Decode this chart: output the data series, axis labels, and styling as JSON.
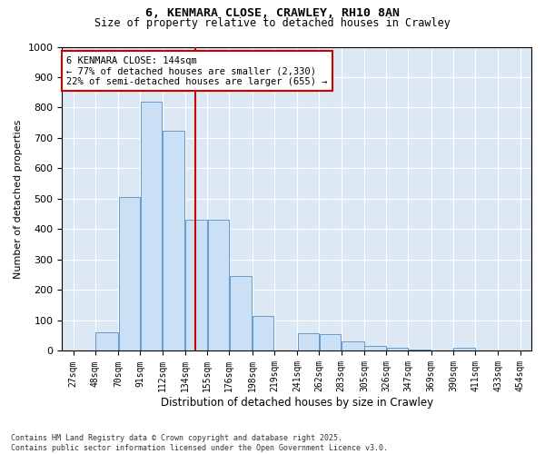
{
  "title_line1": "6, KENMARA CLOSE, CRAWLEY, RH10 8AN",
  "title_line2": "Size of property relative to detached houses in Crawley",
  "xlabel": "Distribution of detached houses by size in Crawley",
  "ylabel": "Number of detached properties",
  "bar_color": "#cce0f5",
  "bar_edge_color": "#6699cc",
  "background_color": "#dde8f5",
  "grid_color": "white",
  "vline_x": 144,
  "vline_color": "#cc0000",
  "annotation_text": "6 KENMARA CLOSE: 144sqm\n← 77% of detached houses are smaller (2,330)\n22% of semi-detached houses are larger (655) →",
  "annotation_box_color": "#cc0000",
  "footer_line1": "Contains HM Land Registry data © Crown copyright and database right 2025.",
  "footer_line2": "Contains public sector information licensed under the Open Government Licence v3.0.",
  "bins": [
    27,
    48,
    70,
    91,
    112,
    134,
    155,
    176,
    198,
    219,
    241,
    262,
    283,
    305,
    326,
    347,
    369,
    390,
    411,
    433,
    454
  ],
  "values": [
    0,
    60,
    505,
    820,
    725,
    430,
    430,
    245,
    115,
    0,
    57,
    55,
    32,
    17,
    10,
    5,
    0,
    10,
    0,
    0
  ],
  "ylim": [
    0,
    1000
  ],
  "yticks": [
    0,
    100,
    200,
    300,
    400,
    500,
    600,
    700,
    800,
    900,
    1000
  ]
}
